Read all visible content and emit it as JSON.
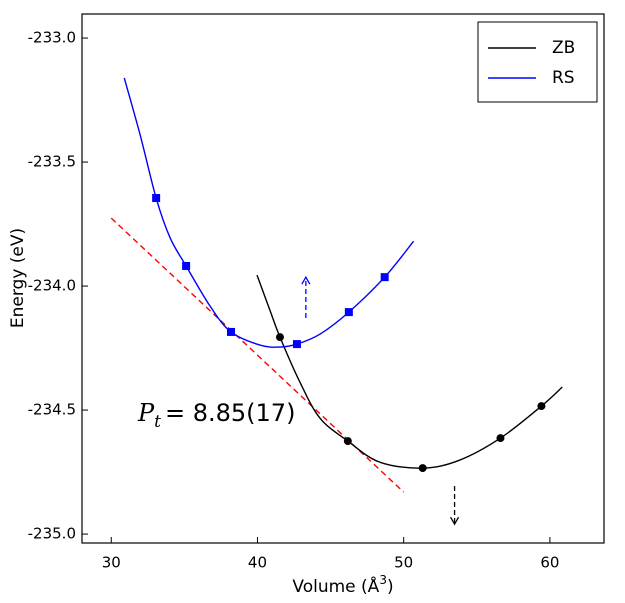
{
  "chart_data": {
    "type": "line",
    "xlabel": {
      "text": "Volume (Å",
      "sup": "3",
      "end": ")"
    },
    "ylabel": "Energy (eV)",
    "xlim": [
      28.0,
      63.7
    ],
    "ylim": [
      -235.036,
      -232.903
    ],
    "xticks": [
      30,
      40,
      50,
      60
    ],
    "yticks": [
      {
        "value": -233,
        "label": "-233.0"
      },
      {
        "value": -233.5,
        "label": "-233.5"
      },
      {
        "value": -234,
        "label": "-234.0"
      },
      {
        "value": -234.5,
        "label": "-234.5"
      },
      {
        "value": -235,
        "label": "-235.0"
      }
    ],
    "legend": "upper right",
    "series": [
      {
        "name": "ZB",
        "color": "#000000",
        "marker": "circle",
        "x": [
          41.54,
          46.18,
          51.3,
          56.62,
          59.42
        ],
        "values": [
          -234.206,
          -234.625,
          -234.734,
          -234.613,
          -234.484
        ],
        "fit_x": [
          39.97,
          40.85,
          41.54,
          42.9,
          44.27,
          46.18,
          48.36,
          51.3,
          53.82,
          56.62,
          59.42,
          60.85
        ],
        "fit_values": [
          -233.956,
          -234.097,
          -234.206,
          -234.387,
          -234.532,
          -234.625,
          -234.71,
          -234.734,
          -234.702,
          -234.613,
          -234.484,
          -234.407
        ]
      },
      {
        "name": "RS",
        "color": "#0000ff",
        "marker": "square",
        "x": [
          33.07,
          35.12,
          38.19,
          42.7,
          46.25,
          48.7
        ],
        "values": [
          -233.645,
          -233.919,
          -234.185,
          -234.234,
          -234.105,
          -233.964
        ],
        "fit_x": [
          30.89,
          31.98,
          33.07,
          34.03,
          35.12,
          36.76,
          38.19,
          40.17,
          41.54,
          42.7,
          44.27,
          46.25,
          48.7,
          50.68
        ],
        "fit_values": [
          -233.161,
          -233.391,
          -233.645,
          -233.806,
          -233.919,
          -234.081,
          -234.185,
          -234.238,
          -234.246,
          -234.234,
          -234.194,
          -234.105,
          -233.964,
          -233.819
        ]
      }
    ],
    "tangent": {
      "color": "#ff0000",
      "x": [
        30,
        50
      ],
      "values": [
        -233.726,
        -234.831
      ]
    },
    "arrows": [
      {
        "color": "#0000ff",
        "x": 43.31,
        "from": -234.129,
        "to": -233.964
      },
      {
        "color": "#000000",
        "x": 53.48,
        "from": -234.806,
        "to": -234.96
      }
    ],
    "annotation": {
      "symbol": "P",
      "subscript": "t",
      "text": "= 8.85(17)",
      "color": "#ff0000"
    }
  }
}
